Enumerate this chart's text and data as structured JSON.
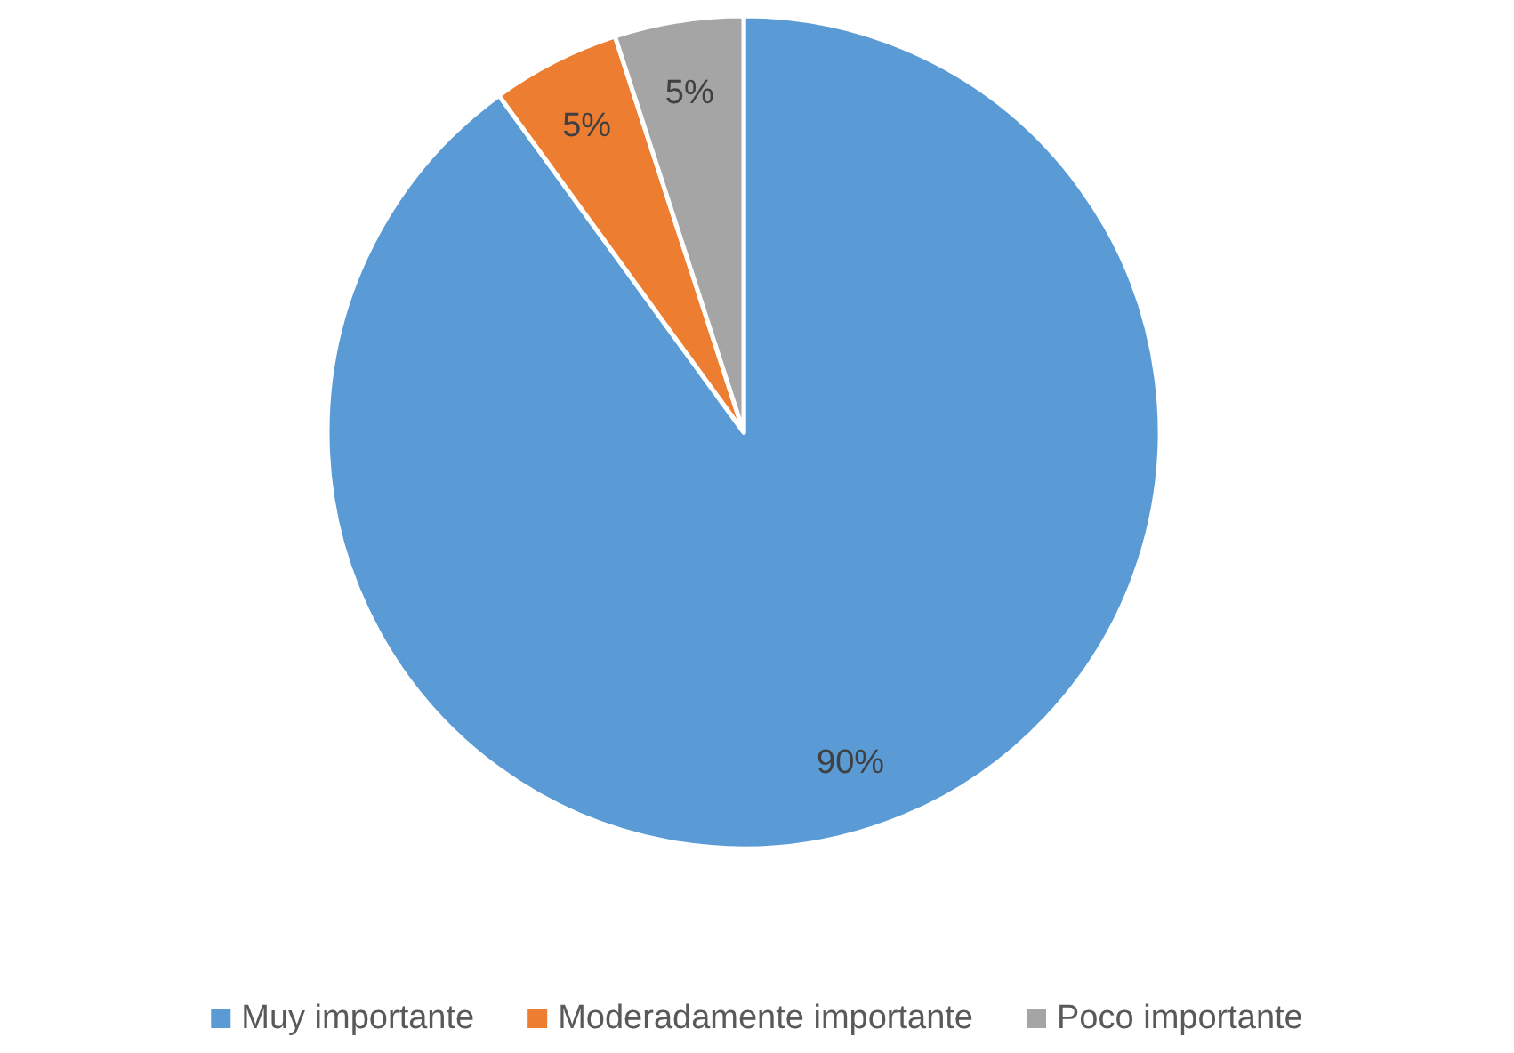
{
  "chart_data": {
    "type": "pie",
    "categories": [
      "Muy importante",
      "Moderadamente importante",
      "Poco importante"
    ],
    "values": [
      90,
      5,
      5
    ],
    "value_labels": [
      "90%",
      "5%",
      "5%"
    ],
    "colors": [
      "#5b9bd5",
      "#ed7d31",
      "#a5a5a5"
    ],
    "legend": "bottom"
  }
}
